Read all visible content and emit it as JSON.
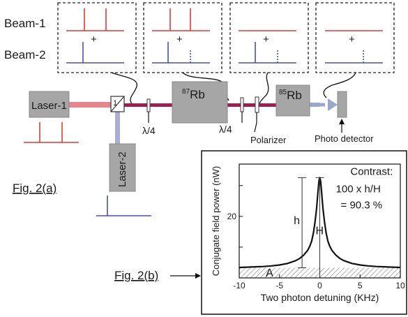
{
  "labels": {
    "beam1": "Beam-1",
    "beam2": "Beam-2",
    "plus": "+",
    "laser1": "Laser-1",
    "laser2": "Laser-2",
    "beamsplitter": "1",
    "quarter_wave_1": "λ/4",
    "quarter_wave_2": "λ/4",
    "rb87_mass": "87",
    "rb87_elem": "Rb",
    "rb85_mass": "85",
    "rb85_elem": "Rb",
    "polarizer": "Polarizer",
    "detector": "Photo detector",
    "fig_a": "Fig. 2(a)",
    "fig_b": "Fig. 2(b)"
  },
  "colors": {
    "beam1": "#dd3b3b",
    "beam2": "#4a4fa8",
    "combined_beam": "#9e2053",
    "probe_beam": "#9aa6cc",
    "laser1_beam": "#e8858a",
    "laser2_beam": "#a9aed8",
    "component_fill": "#a6a6a6"
  },
  "chart_data": {
    "type": "line",
    "xlabel": "Two photon detuning (KHz)",
    "ylabel": "Conjugate field power (nW)",
    "xlim": [
      -10,
      10
    ],
    "ylim": [
      0,
      37
    ],
    "x_ticks": [
      -10,
      -5,
      0,
      5,
      10
    ],
    "y_ticks": [
      10,
      20,
      30
    ],
    "y_tick_labels": [
      "",
      "20",
      ""
    ],
    "series": [
      {
        "name": "",
        "x": [
          -10,
          -9,
          -8,
          -7,
          -6,
          -5,
          -4,
          -3,
          -2.5,
          -2,
          -1.5,
          -1.2,
          -1,
          -0.8,
          -0.6,
          -0.4,
          -0.3,
          -0.2,
          -0.1,
          0,
          0.1,
          0.2,
          0.3,
          0.4,
          0.6,
          0.8,
          1,
          1.2,
          1.5,
          2,
          2.5,
          3,
          4,
          5,
          6,
          7,
          8,
          9,
          10
        ],
        "y": [
          3.4,
          3.5,
          3.6,
          3.7,
          3.9,
          4.2,
          4.7,
          5.6,
          6.3,
          7.4,
          9.0,
          10.5,
          12.0,
          14.5,
          18.0,
          22.5,
          25.5,
          28.8,
          31.5,
          32.6,
          31.5,
          28.8,
          25.5,
          22.5,
          18.0,
          14.5,
          12.0,
          10.5,
          9.0,
          7.4,
          6.3,
          5.6,
          4.7,
          4.2,
          3.9,
          3.7,
          3.6,
          3.5,
          3.4
        ]
      }
    ],
    "baseline": 3.3,
    "peak": 32.6,
    "annotations": {
      "contrast_title": "Contrast:",
      "contrast_formula": "100 x h/H",
      "contrast_value": "= 90.3 %",
      "h": "h",
      "H": "H",
      "A": "A"
    }
  }
}
